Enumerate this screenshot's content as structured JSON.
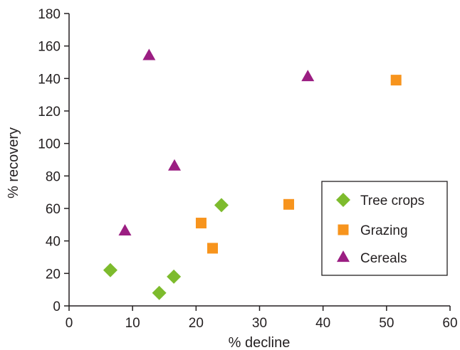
{
  "chart_data": {
    "type": "scatter",
    "xlabel": "% decline",
    "ylabel": "% recovery",
    "xlim": [
      0,
      60
    ],
    "ylim": [
      0,
      180
    ],
    "xticks": [
      0,
      10,
      20,
      30,
      40,
      50,
      60
    ],
    "yticks": [
      0,
      20,
      40,
      60,
      80,
      100,
      120,
      140,
      160,
      180
    ],
    "grid": false,
    "legend_position": "right",
    "series": [
      {
        "name": "Tree crops",
        "marker": "diamond",
        "color": "#7dbb2d",
        "points": [
          {
            "x": 6.5,
            "y": 22
          },
          {
            "x": 14.2,
            "y": 8
          },
          {
            "x": 16.5,
            "y": 18
          },
          {
            "x": 24,
            "y": 62
          }
        ]
      },
      {
        "name": "Grazing",
        "marker": "square",
        "color": "#f7941d",
        "points": [
          {
            "x": 20.8,
            "y": 51
          },
          {
            "x": 22.6,
            "y": 35.5
          },
          {
            "x": 34.6,
            "y": 62.5
          },
          {
            "x": 51.5,
            "y": 139
          }
        ]
      },
      {
        "name": "Cereals",
        "marker": "triangle",
        "color": "#9b1e82",
        "points": [
          {
            "x": 8.8,
            "y": 46
          },
          {
            "x": 12.6,
            "y": 154
          },
          {
            "x": 16.6,
            "y": 86
          },
          {
            "x": 37.6,
            "y": 141
          }
        ]
      }
    ]
  }
}
